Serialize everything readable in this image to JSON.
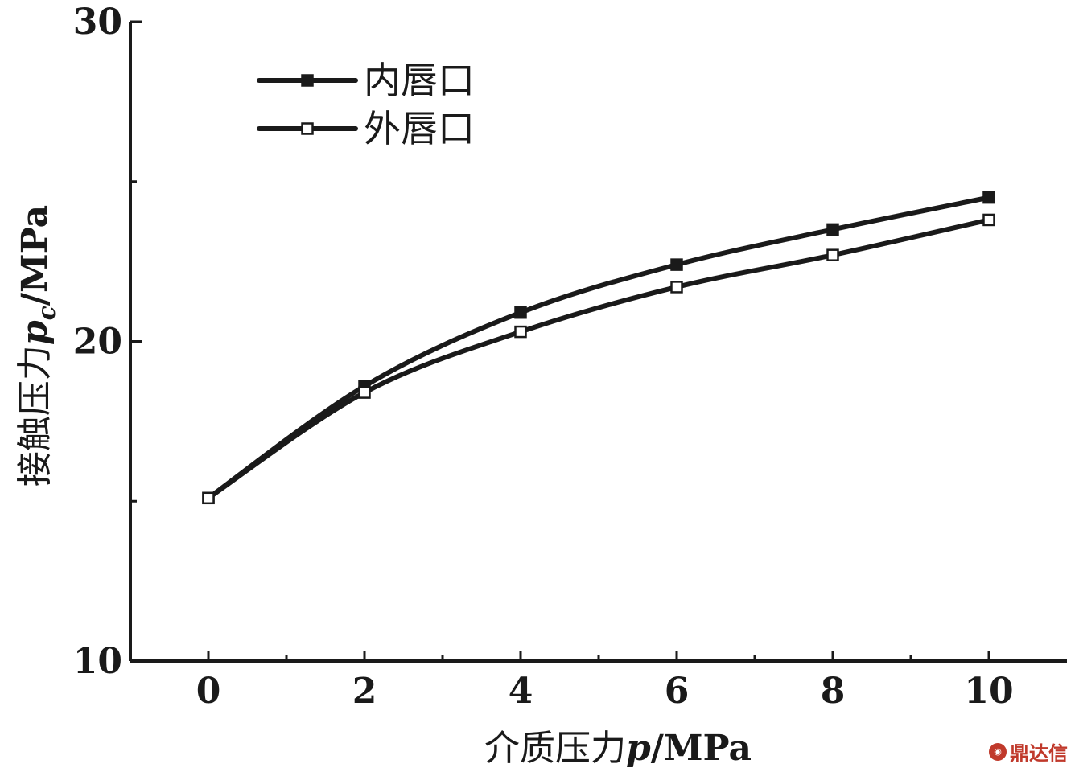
{
  "chart_data": {
    "type": "line",
    "x": [
      0,
      2,
      4,
      6,
      8,
      10
    ],
    "xlabel": {
      "prefix": "介质压力",
      "var": "p",
      "unit": "/MPa"
    },
    "ylabel": {
      "prefix": "接触压力",
      "var": "p",
      "sub": "c",
      "unit": "/MPa"
    },
    "xlim": [
      -1,
      11
    ],
    "ylim": [
      10,
      30
    ],
    "xticks": [
      0,
      2,
      4,
      6,
      8,
      10
    ],
    "xtick_labels": [
      "0",
      "2",
      "4",
      "6",
      "8",
      "10"
    ],
    "yticks_major": [
      10,
      20,
      30
    ],
    "ytick_labels": [
      "10",
      "20",
      "30"
    ],
    "yticks_minor": [
      15,
      25
    ],
    "xticks_minor": [
      1,
      3,
      5,
      7,
      9
    ],
    "grid": false,
    "legend_position": "top-left",
    "series": [
      {
        "name": "内唇口",
        "marker": "filled-square",
        "values": [
          15.1,
          18.6,
          20.9,
          22.4,
          23.5,
          24.5
        ]
      },
      {
        "name": "外唇口",
        "marker": "open-square",
        "values": [
          15.1,
          18.4,
          20.3,
          21.7,
          22.7,
          23.8
        ]
      }
    ],
    "colors": {
      "line": "#1a1a1a"
    }
  },
  "watermark": {
    "text": "鼎达信",
    "color": "#c0392b"
  }
}
